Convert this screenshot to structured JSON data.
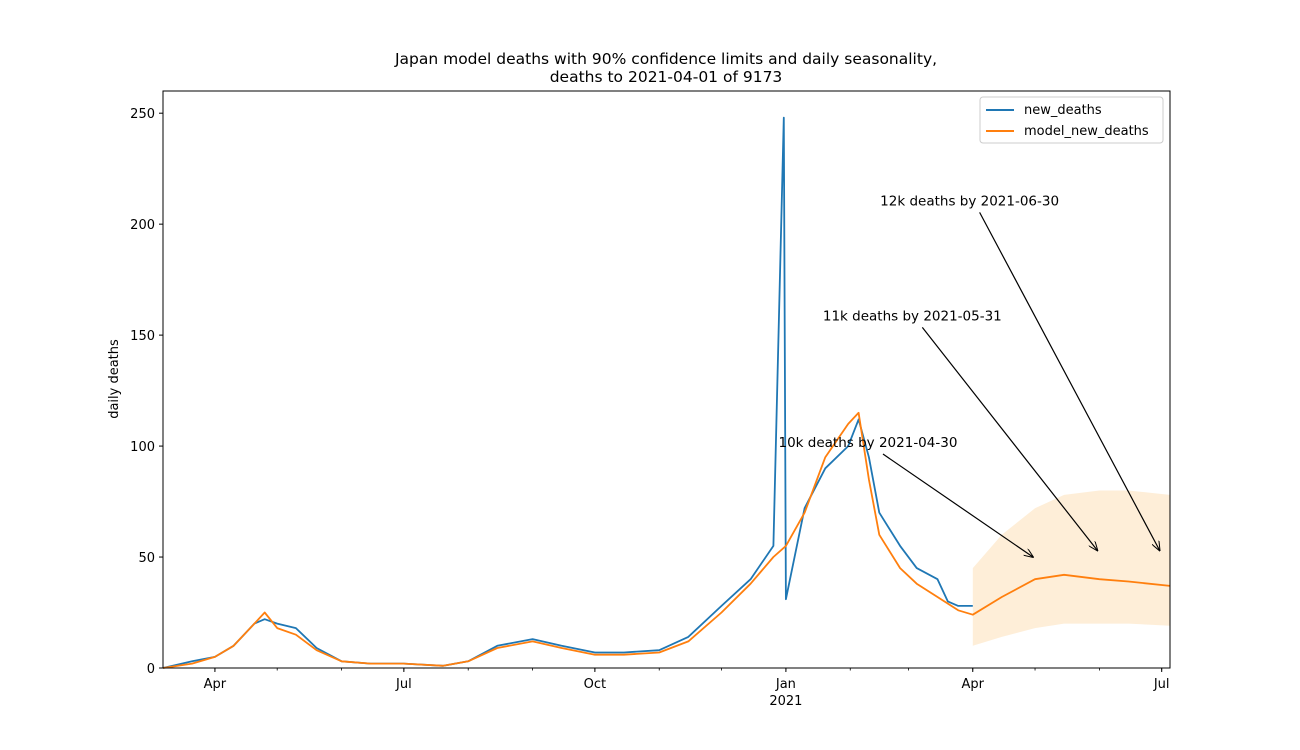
{
  "chart_data": {
    "type": "line",
    "title": "Japan model deaths with 90% confidence limits and daily seasonality,",
    "subtitle": "deaths to 2021-04-01 of 9173",
    "ylabel": "daily deaths",
    "xlabel": "",
    "xlim": [
      "2020-03-07",
      "2021-07-05"
    ],
    "ylim": [
      0,
      260
    ],
    "yticks": [
      0,
      50,
      100,
      150,
      200,
      250
    ],
    "xticks": [
      {
        "date": "2020-04-01",
        "label": "Apr"
      },
      {
        "date": "2020-07-01",
        "label": "Jul"
      },
      {
        "date": "2020-10-01",
        "label": "Oct"
      },
      {
        "date": "2021-01-01",
        "label": "Jan"
      },
      {
        "date": "2021-04-01",
        "label": "Apr"
      },
      {
        "date": "2021-07-01",
        "label": "Jul"
      }
    ],
    "xtick_year_label": {
      "date": "2021-01-01",
      "label": "2021"
    },
    "legend": {
      "position": "top-right",
      "entries": [
        "new_deaths",
        "model_new_deaths"
      ]
    },
    "colors": {
      "new_deaths": "#1f77b4",
      "model_new_deaths": "#ff7f0e",
      "confidence_band": "#fdd9a8"
    },
    "series": [
      {
        "name": "new_deaths",
        "points": [
          [
            "2020-03-07",
            0
          ],
          [
            "2020-03-21",
            3
          ],
          [
            "2020-04-01",
            5
          ],
          [
            "2020-04-10",
            10
          ],
          [
            "2020-04-20",
            20
          ],
          [
            "2020-04-25",
            22
          ],
          [
            "2020-05-01",
            20
          ],
          [
            "2020-05-10",
            18
          ],
          [
            "2020-05-20",
            9
          ],
          [
            "2020-06-01",
            3
          ],
          [
            "2020-06-15",
            2
          ],
          [
            "2020-07-01",
            2
          ],
          [
            "2020-07-20",
            1
          ],
          [
            "2020-08-01",
            3
          ],
          [
            "2020-08-15",
            10
          ],
          [
            "2020-09-01",
            13
          ],
          [
            "2020-09-15",
            10
          ],
          [
            "2020-10-01",
            7
          ],
          [
            "2020-10-15",
            7
          ],
          [
            "2020-11-01",
            8
          ],
          [
            "2020-11-15",
            14
          ],
          [
            "2020-12-01",
            28
          ],
          [
            "2020-12-15",
            40
          ],
          [
            "2020-12-26",
            55
          ],
          [
            "2020-12-31",
            248
          ],
          [
            "2021-01-01",
            31
          ],
          [
            "2021-01-10",
            72
          ],
          [
            "2021-01-20",
            90
          ],
          [
            "2021-01-31",
            100
          ],
          [
            "2021-02-05",
            112
          ],
          [
            "2021-02-10",
            95
          ],
          [
            "2021-02-15",
            70
          ],
          [
            "2021-02-25",
            55
          ],
          [
            "2021-03-05",
            45
          ],
          [
            "2021-03-15",
            40
          ],
          [
            "2021-03-20",
            30
          ],
          [
            "2021-03-25",
            28
          ],
          [
            "2021-04-01",
            28
          ]
        ]
      },
      {
        "name": "model_new_deaths",
        "points": [
          [
            "2020-03-07",
            0
          ],
          [
            "2020-03-21",
            2
          ],
          [
            "2020-04-01",
            5
          ],
          [
            "2020-04-10",
            10
          ],
          [
            "2020-04-20",
            20
          ],
          [
            "2020-04-25",
            25
          ],
          [
            "2020-05-01",
            18
          ],
          [
            "2020-05-10",
            15
          ],
          [
            "2020-05-20",
            8
          ],
          [
            "2020-06-01",
            3
          ],
          [
            "2020-06-15",
            2
          ],
          [
            "2020-07-01",
            2
          ],
          [
            "2020-07-20",
            1
          ],
          [
            "2020-08-01",
            3
          ],
          [
            "2020-08-15",
            9
          ],
          [
            "2020-09-01",
            12
          ],
          [
            "2020-09-15",
            9
          ],
          [
            "2020-10-01",
            6
          ],
          [
            "2020-10-15",
            6
          ],
          [
            "2020-11-01",
            7
          ],
          [
            "2020-11-15",
            12
          ],
          [
            "2020-12-01",
            25
          ],
          [
            "2020-12-15",
            38
          ],
          [
            "2020-12-26",
            50
          ],
          [
            "2021-01-01",
            55
          ],
          [
            "2021-01-10",
            70
          ],
          [
            "2021-01-20",
            95
          ],
          [
            "2021-01-31",
            110
          ],
          [
            "2021-02-05",
            115
          ],
          [
            "2021-02-10",
            85
          ],
          [
            "2021-02-15",
            60
          ],
          [
            "2021-02-25",
            45
          ],
          [
            "2021-03-05",
            38
          ],
          [
            "2021-03-15",
            32
          ],
          [
            "2021-03-25",
            26
          ],
          [
            "2021-04-01",
            24
          ],
          [
            "2021-04-15",
            32
          ],
          [
            "2021-05-01",
            40
          ],
          [
            "2021-05-15",
            42
          ],
          [
            "2021-06-01",
            40
          ],
          [
            "2021-06-15",
            39
          ],
          [
            "2021-07-05",
            37
          ]
        ]
      }
    ],
    "confidence_band": [
      [
        "2021-04-01",
        10,
        45
      ],
      [
        "2021-04-15",
        14,
        60
      ],
      [
        "2021-05-01",
        18,
        72
      ],
      [
        "2021-05-15",
        20,
        78
      ],
      [
        "2021-06-01",
        20,
        80
      ],
      [
        "2021-06-15",
        20,
        80
      ],
      [
        "2021-07-05",
        19,
        78
      ]
    ],
    "annotations": [
      {
        "text": "10k deaths by 2021-04-30",
        "target": [
          "2021-04-30",
          50
        ]
      },
      {
        "text": "11k deaths by 2021-05-31",
        "target": [
          "2021-05-31",
          53
        ]
      },
      {
        "text": "12k deaths by 2021-06-30",
        "target": [
          "2021-06-30",
          53
        ]
      }
    ]
  }
}
